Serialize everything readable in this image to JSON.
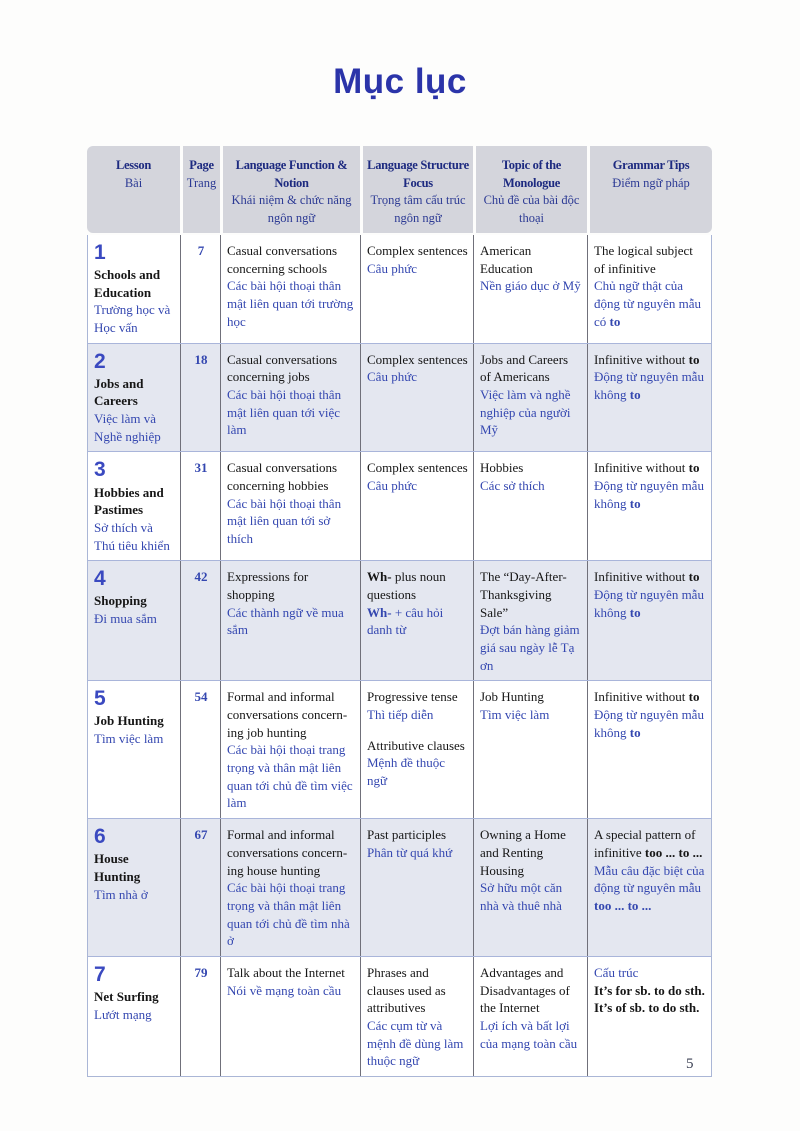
{
  "title": "Mục lục",
  "page_number": "5",
  "colors": {
    "title_blue": "#2b34a9",
    "vietnamese_blue": "#3447b0",
    "header_bg": "#d4d5dc",
    "header_text": "#1d2a80",
    "row_tint": "#e4e7f0"
  },
  "header": {
    "columns": [
      {
        "en": "Lesson",
        "vi": "Bài"
      },
      {
        "en": "Page",
        "vi": "Trang"
      },
      {
        "en": "Language Function & Notion",
        "vi": "Khái niệm & chức năng ngôn ngữ"
      },
      {
        "en": "Language Structure Focus",
        "vi": "Trọng tâm cấu trúc ngôn ngữ"
      },
      {
        "en": "Topic of the Monologue",
        "vi": "Chủ đề của bài độc thoại"
      },
      {
        "en": "Grammar Tips",
        "vi": "Điểm ngữ pháp"
      }
    ]
  },
  "rows": [
    {
      "num": "1",
      "name_en": "Schools and Education",
      "name_vi": "Trường học và Học vấn",
      "page": "7",
      "tint": false,
      "function": [
        {
          "c": "en",
          "t": "Casual conversations concerning schools"
        },
        {
          "c": "vi",
          "t": "Các bài hội thoại thân mật liên quan tới trường học"
        }
      ],
      "structure": [
        {
          "c": "en",
          "t": "Complex sentences"
        },
        {
          "c": "vi",
          "t": "Câu phức"
        }
      ],
      "topic": [
        {
          "c": "en",
          "t": "American Education"
        },
        {
          "c": "vi",
          "t": "Nền giáo dục ở Mỹ"
        }
      ],
      "grammar": [
        {
          "c": "en",
          "t": "The logical subject of infinitive"
        },
        {
          "c": "vi",
          "p": [
            [
              "Chủ ngữ thật của động từ nguyên mẫu có ",
              0
            ],
            [
              "to",
              1
            ]
          ]
        }
      ]
    },
    {
      "num": "2",
      "name_en": "Jobs and Careers",
      "name_vi": "Việc làm và Nghề nghiệp",
      "page": "18",
      "tint": true,
      "function": [
        {
          "c": "en",
          "t": "Casual conversations concerning jobs"
        },
        {
          "c": "vi",
          "t": "Các bài hội thoại thân mật liên quan tới việc làm"
        }
      ],
      "structure": [
        {
          "c": "en",
          "t": "Complex sentences"
        },
        {
          "c": "vi",
          "t": "Câu phức"
        }
      ],
      "topic": [
        {
          "c": "en",
          "t": "Jobs and Careers of Americans"
        },
        {
          "c": "vi",
          "t": "Việc làm và nghề nghiệp của người Mỹ"
        }
      ],
      "grammar": [
        {
          "c": "en",
          "p": [
            [
              "Infinitive without ",
              0
            ],
            [
              "to",
              1
            ]
          ]
        },
        {
          "c": "vi",
          "p": [
            [
              "Động từ nguyên mẫu không ",
              0
            ],
            [
              "to",
              1
            ]
          ]
        }
      ]
    },
    {
      "num": "3",
      "name_en": "Hobbies and Pastimes",
      "name_vi": "Sở thích và Thú tiêu khiển",
      "page": "31",
      "tint": false,
      "function": [
        {
          "c": "en",
          "t": "Casual conversations concerning hobbies"
        },
        {
          "c": "vi",
          "t": "Các bài hội thoại thân mật liên quan tới sở thích"
        }
      ],
      "structure": [
        {
          "c": "en",
          "t": "Complex sentences"
        },
        {
          "c": "vi",
          "t": "Câu phức"
        }
      ],
      "topic": [
        {
          "c": "en",
          "t": "Hobbies"
        },
        {
          "c": "vi",
          "t": "Các sở thích"
        }
      ],
      "grammar": [
        {
          "c": "en",
          "p": [
            [
              "Infinitive without ",
              0
            ],
            [
              "to",
              1
            ]
          ]
        },
        {
          "c": "vi",
          "p": [
            [
              "Động từ nguyên mẫu không ",
              0
            ],
            [
              "to",
              1
            ]
          ]
        }
      ]
    },
    {
      "num": "4",
      "name_en": "Shopping",
      "name_vi": "Đi mua sắm",
      "page": "42",
      "tint": true,
      "function": [
        {
          "c": "en",
          "t": "Expressions for shopping"
        },
        {
          "c": "vi",
          "t": "Các thành ngữ về mua sắm"
        }
      ],
      "structure": [
        {
          "c": "en",
          "p": [
            [
              "Wh-",
              1
            ],
            [
              " plus noun questions",
              0
            ]
          ]
        },
        {
          "c": "vi",
          "p": [
            [
              "Wh-",
              1
            ],
            [
              " + câu hỏi danh từ",
              0
            ]
          ]
        }
      ],
      "topic": [
        {
          "c": "en",
          "t": "The “Day-After-Thanksgiving Sale”"
        },
        {
          "c": "vi",
          "t": "Đợt bán hàng giảm giá sau ngày lễ Tạ ơn"
        }
      ],
      "grammar": [
        {
          "c": "en",
          "p": [
            [
              "Infinitive without ",
              0
            ],
            [
              "to",
              1
            ]
          ]
        },
        {
          "c": "vi",
          "p": [
            [
              "Động từ nguyên mẫu không ",
              0
            ],
            [
              "to",
              1
            ]
          ]
        }
      ]
    },
    {
      "num": "5",
      "name_en": "Job Hunting",
      "name_vi": "Tìm việc làm",
      "page": "54",
      "tint": false,
      "function": [
        {
          "c": "en",
          "t": "Formal and informal conversations concern-ing job hunting"
        },
        {
          "c": "vi",
          "t": "Các bài hội thoại trang trọng và thân mật liên quan tới chủ đề tìm việc làm"
        }
      ],
      "structure": [
        {
          "c": "en",
          "t": "Progressive tense"
        },
        {
          "c": "vi",
          "t": "Thì tiếp diễn"
        },
        {
          "c": "en",
          "gap": true,
          "t": "Attributive clauses"
        },
        {
          "c": "vi",
          "t": "Mệnh đề thuộc ngữ"
        }
      ],
      "topic": [
        {
          "c": "en",
          "t": "Job Hunting"
        },
        {
          "c": "vi",
          "t": "Tìm việc làm"
        }
      ],
      "grammar": [
        {
          "c": "en",
          "p": [
            [
              "Infinitive without ",
              0
            ],
            [
              "to",
              1
            ]
          ]
        },
        {
          "c": "vi",
          "p": [
            [
              "Động từ nguyên mẫu không ",
              0
            ],
            [
              "to",
              1
            ]
          ]
        }
      ]
    },
    {
      "num": "6",
      "name_en": "House Hunting",
      "name_vi": "Tìm nhà ở",
      "page": "67",
      "tint": true,
      "function": [
        {
          "c": "en",
          "t": "Formal and informal conversations concern-ing house hunting"
        },
        {
          "c": "vi",
          "t": "Các bài hội thoại trang trọng và thân mật liên quan tới chủ đề tìm nhà ở"
        }
      ],
      "structure": [
        {
          "c": "en",
          "t": "Past participles"
        },
        {
          "c": "vi",
          "t": "Phân từ quá khứ"
        }
      ],
      "topic": [
        {
          "c": "en",
          "t": "Owning a Home and Renting Housing"
        },
        {
          "c": "vi",
          "t": "Sở hữu một căn nhà và thuê nhà"
        }
      ],
      "grammar": [
        {
          "c": "en",
          "p": [
            [
              "A special pattern of infinitive ",
              0
            ],
            [
              "too ... to ...",
              1
            ]
          ]
        },
        {
          "c": "vi",
          "p": [
            [
              "Mẫu câu đặc biệt của động từ nguyên mẫu ",
              0
            ],
            [
              "too ... to ...",
              1
            ]
          ]
        }
      ]
    },
    {
      "num": "7",
      "name_en": "Net Surfing",
      "name_vi": "Lướt mạng",
      "page": "79",
      "tint": false,
      "function": [
        {
          "c": "en",
          "t": "Talk about the Internet"
        },
        {
          "c": "vi",
          "t": "Nói về mạng toàn cầu"
        }
      ],
      "structure": [
        {
          "c": "en",
          "t": "Phrases and clauses used as attributives"
        },
        {
          "c": "vi",
          "t": "Các cụm từ và mệnh đề dùng làm thuộc ngữ"
        }
      ],
      "topic": [
        {
          "c": "en",
          "t": "Advantages and Disadvantages of the Internet"
        },
        {
          "c": "vi",
          "t": "Lợi ích và bất lợi của mạng toàn cầu"
        }
      ],
      "grammar": [
        {
          "c": "vi",
          "t": "Cấu trúc"
        },
        {
          "c": "en",
          "p": [
            [
              "It’s for sb. to do sth.",
              1
            ]
          ]
        },
        {
          "c": "en",
          "p": [
            [
              "It’s of sb. to do sth.",
              1
            ]
          ]
        }
      ]
    }
  ]
}
